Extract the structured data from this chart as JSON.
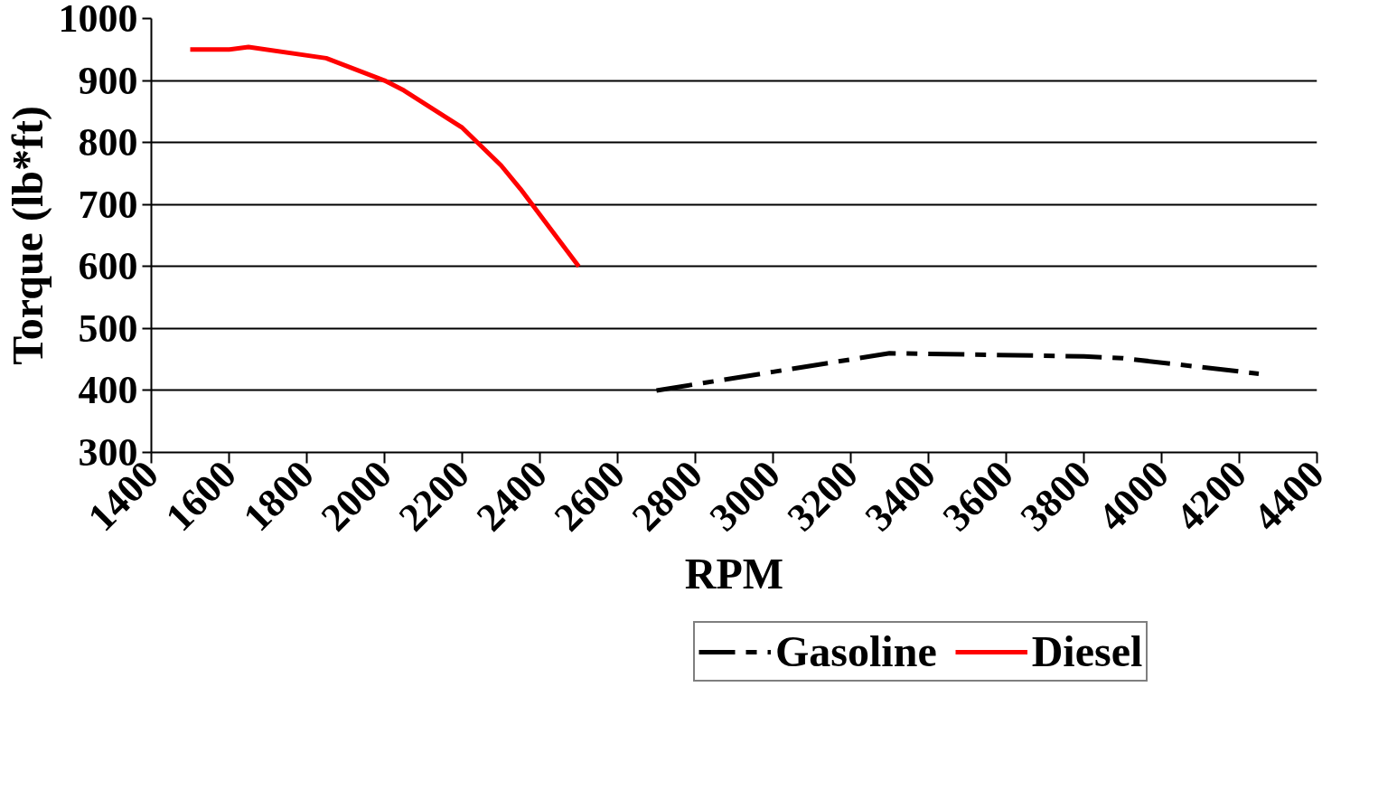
{
  "chart_data": {
    "type": "line",
    "xlabel": "RPM",
    "ylabel": "Torque (lb*ft)",
    "xlim": [
      1400,
      4400
    ],
    "xticks": [
      1400,
      1600,
      1800,
      2000,
      2200,
      2400,
      2600,
      2800,
      3000,
      3200,
      3400,
      3600,
      3800,
      4000,
      4200,
      4400
    ],
    "ylim": [
      300,
      1000
    ],
    "yticks": [
      300,
      400,
      500,
      600,
      700,
      800,
      900,
      1000
    ],
    "grid": "y",
    "legend": "bottom",
    "marker": "none",
    "series": [
      {
        "name": "Gasoline",
        "color": "#000000",
        "line_style": "dashed",
        "x": [
          2700,
          3000,
          3300,
          3800,
          3900,
          4250
        ],
        "values": [
          400,
          430,
          460,
          455,
          452,
          427
        ]
      },
      {
        "name": "Diesel",
        "color": "#ff0000",
        "line_style": "solid",
        "x": [
          1500,
          1600,
          1650,
          1850,
          2000,
          2050,
          2200,
          2300,
          2350,
          2500
        ],
        "values": [
          950,
          950,
          954,
          936,
          900,
          884,
          824,
          763,
          725,
          600
        ]
      }
    ]
  }
}
